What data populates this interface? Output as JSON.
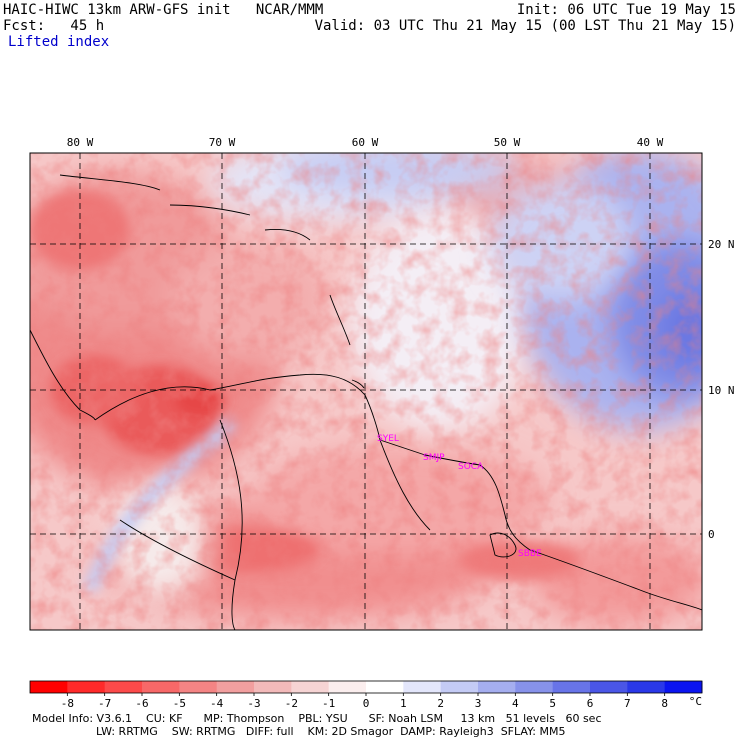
{
  "header": {
    "model_title": "HAIC-HIWC 13km ARW-GFS init   NCAR/MMM",
    "forecast": "Fcst:   45 h",
    "field": "Lifted index",
    "init": "Init: 06 UTC Tue 19 May 15",
    "valid": "Valid: 03 UTC Thu 21 May 15 (00 LST Thu 21 May 15)"
  },
  "map": {
    "lon_labels": [
      "80 W",
      "70 W",
      "60 W",
      "50 W",
      "40 W"
    ],
    "lat_labels": [
      "20 N",
      "10 N",
      "0"
    ],
    "stations": [
      "SYEL",
      "SMJP",
      "SOCA",
      "SBBE"
    ]
  },
  "colorbar": {
    "labels": [
      "-8",
      "-7",
      "-6",
      "-5",
      "-4",
      "-3",
      "-2",
      "-1",
      "0",
      "1",
      "2",
      "3",
      "4",
      "5",
      "6",
      "7",
      "8"
    ],
    "unit": "°C",
    "colors": [
      "#ff0000",
      "#ff2a2a",
      "#fc4a4a",
      "#f76868",
      "#f48484",
      "#f29f9f",
      "#f3baba",
      "#f6d4d4",
      "#fbeeee",
      "#ffffff",
      "#e3e6fb",
      "#c4cbf5",
      "#a5aeef",
      "#8792ea",
      "#6874e8",
      "#4a56e6",
      "#2a38e8",
      "#0a14f0"
    ]
  },
  "footer": {
    "line1": "Model Info: V3.6.1    CU: KF      MP: Thompson    PBL: YSU      SF: Noah LSM     13 km   51 levels   60 sec",
    "line2": "LW: RRTMG    SW: RRTMG   DIFF: full    KM: 2D Smagor  DAMP: Rayleigh3  SFLAY: MM5"
  }
}
